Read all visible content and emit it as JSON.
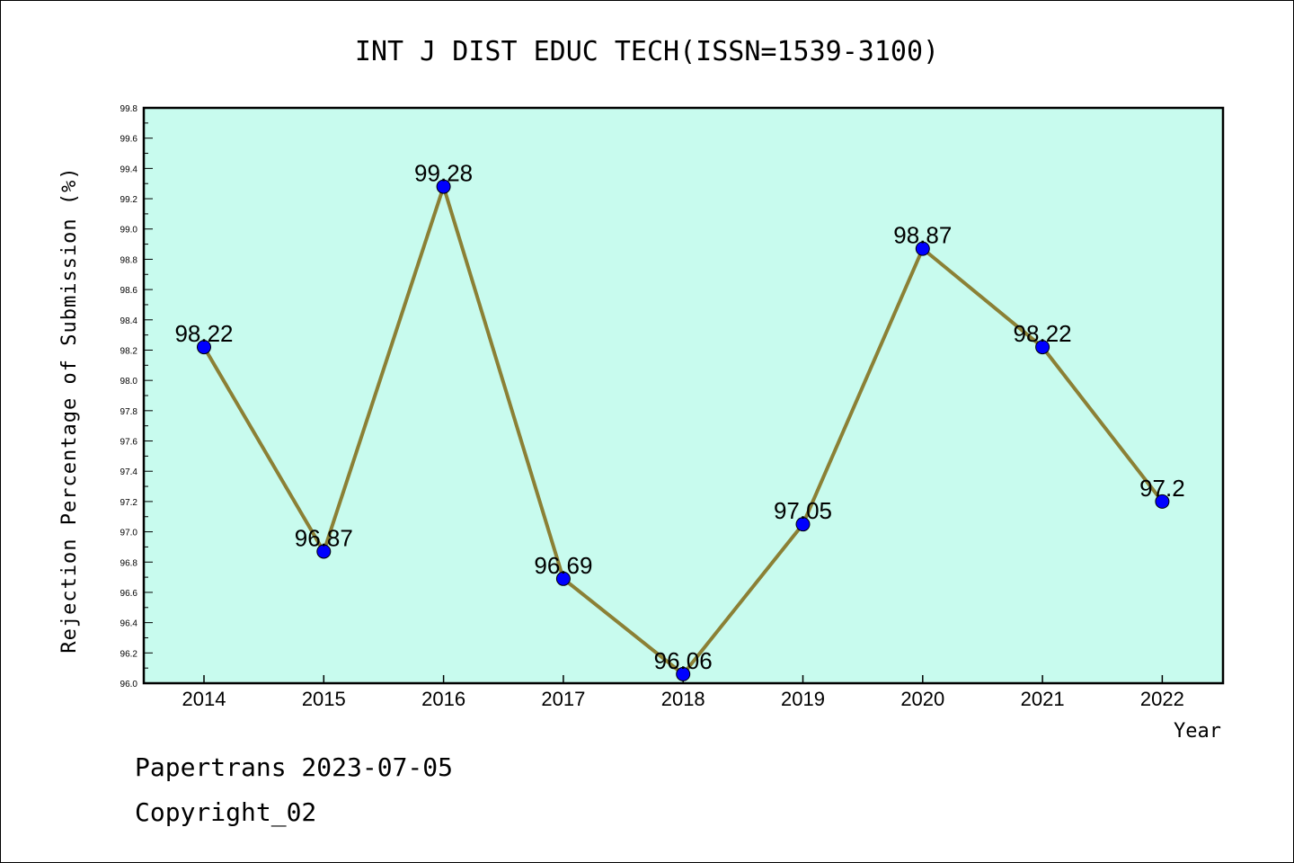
{
  "footer": {
    "line1": "Papertrans 2023-07-05",
    "line2": "Copyright_02"
  },
  "colors": {
    "plot_background": "#c8fbee",
    "line": "#8b8035",
    "marker": "#0000ff"
  },
  "chart_data": {
    "type": "line",
    "title": "INT J DIST EDUC TECH(ISSN=1539-3100)",
    "xlabel": "Year",
    "ylabel": "Rejection Percentage of Submission (%)",
    "categories": [
      "2014",
      "2015",
      "2016",
      "2017",
      "2018",
      "2019",
      "2020",
      "2021",
      "2022"
    ],
    "values": [
      98.22,
      96.87,
      99.28,
      96.69,
      96.06,
      97.05,
      98.87,
      98.22,
      97.2
    ],
    "data_labels": [
      "98.22",
      "96.87",
      "99.28",
      "96.69",
      "96.06",
      "97.05",
      "98.87",
      "98.22",
      "97.2"
    ],
    "ylim": [
      96.0,
      99.8
    ],
    "yticks": [
      "96.0",
      "96.2",
      "96.4",
      "96.6",
      "96.8",
      "97.0",
      "97.2",
      "97.4",
      "97.6",
      "97.8",
      "98.0",
      "98.2",
      "98.4",
      "98.6",
      "98.8",
      "99.0",
      "99.2",
      "99.4",
      "99.6",
      "99.8"
    ],
    "grid": false,
    "legend": "none"
  }
}
